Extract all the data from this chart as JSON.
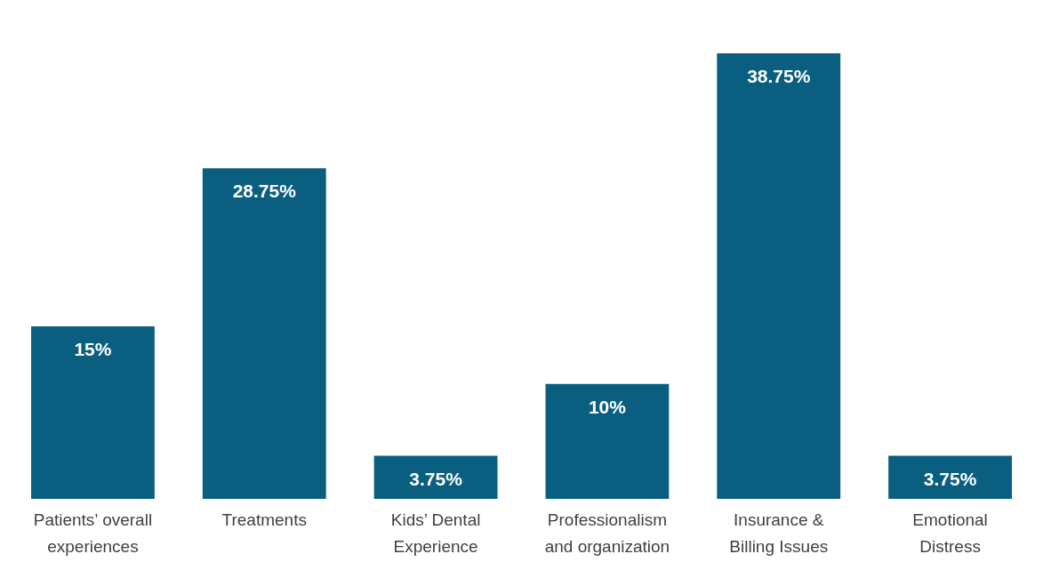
{
  "chart_data": {
    "type": "bar",
    "categories": [
      "Patients’ overall experiences",
      "Treatments",
      "Kids’ Dental Experience",
      "Professionalism and organization",
      "Insurance & Billing Issues",
      "Emotional Distress"
    ],
    "values": [
      15,
      28.75,
      3.75,
      10,
      38.75,
      3.75
    ],
    "value_labels": [
      "15%",
      "28.75%",
      "3.75%",
      "10%",
      "38.75%",
      "3.75%"
    ],
    "color": "#0a5f80",
    "grid": false
  }
}
